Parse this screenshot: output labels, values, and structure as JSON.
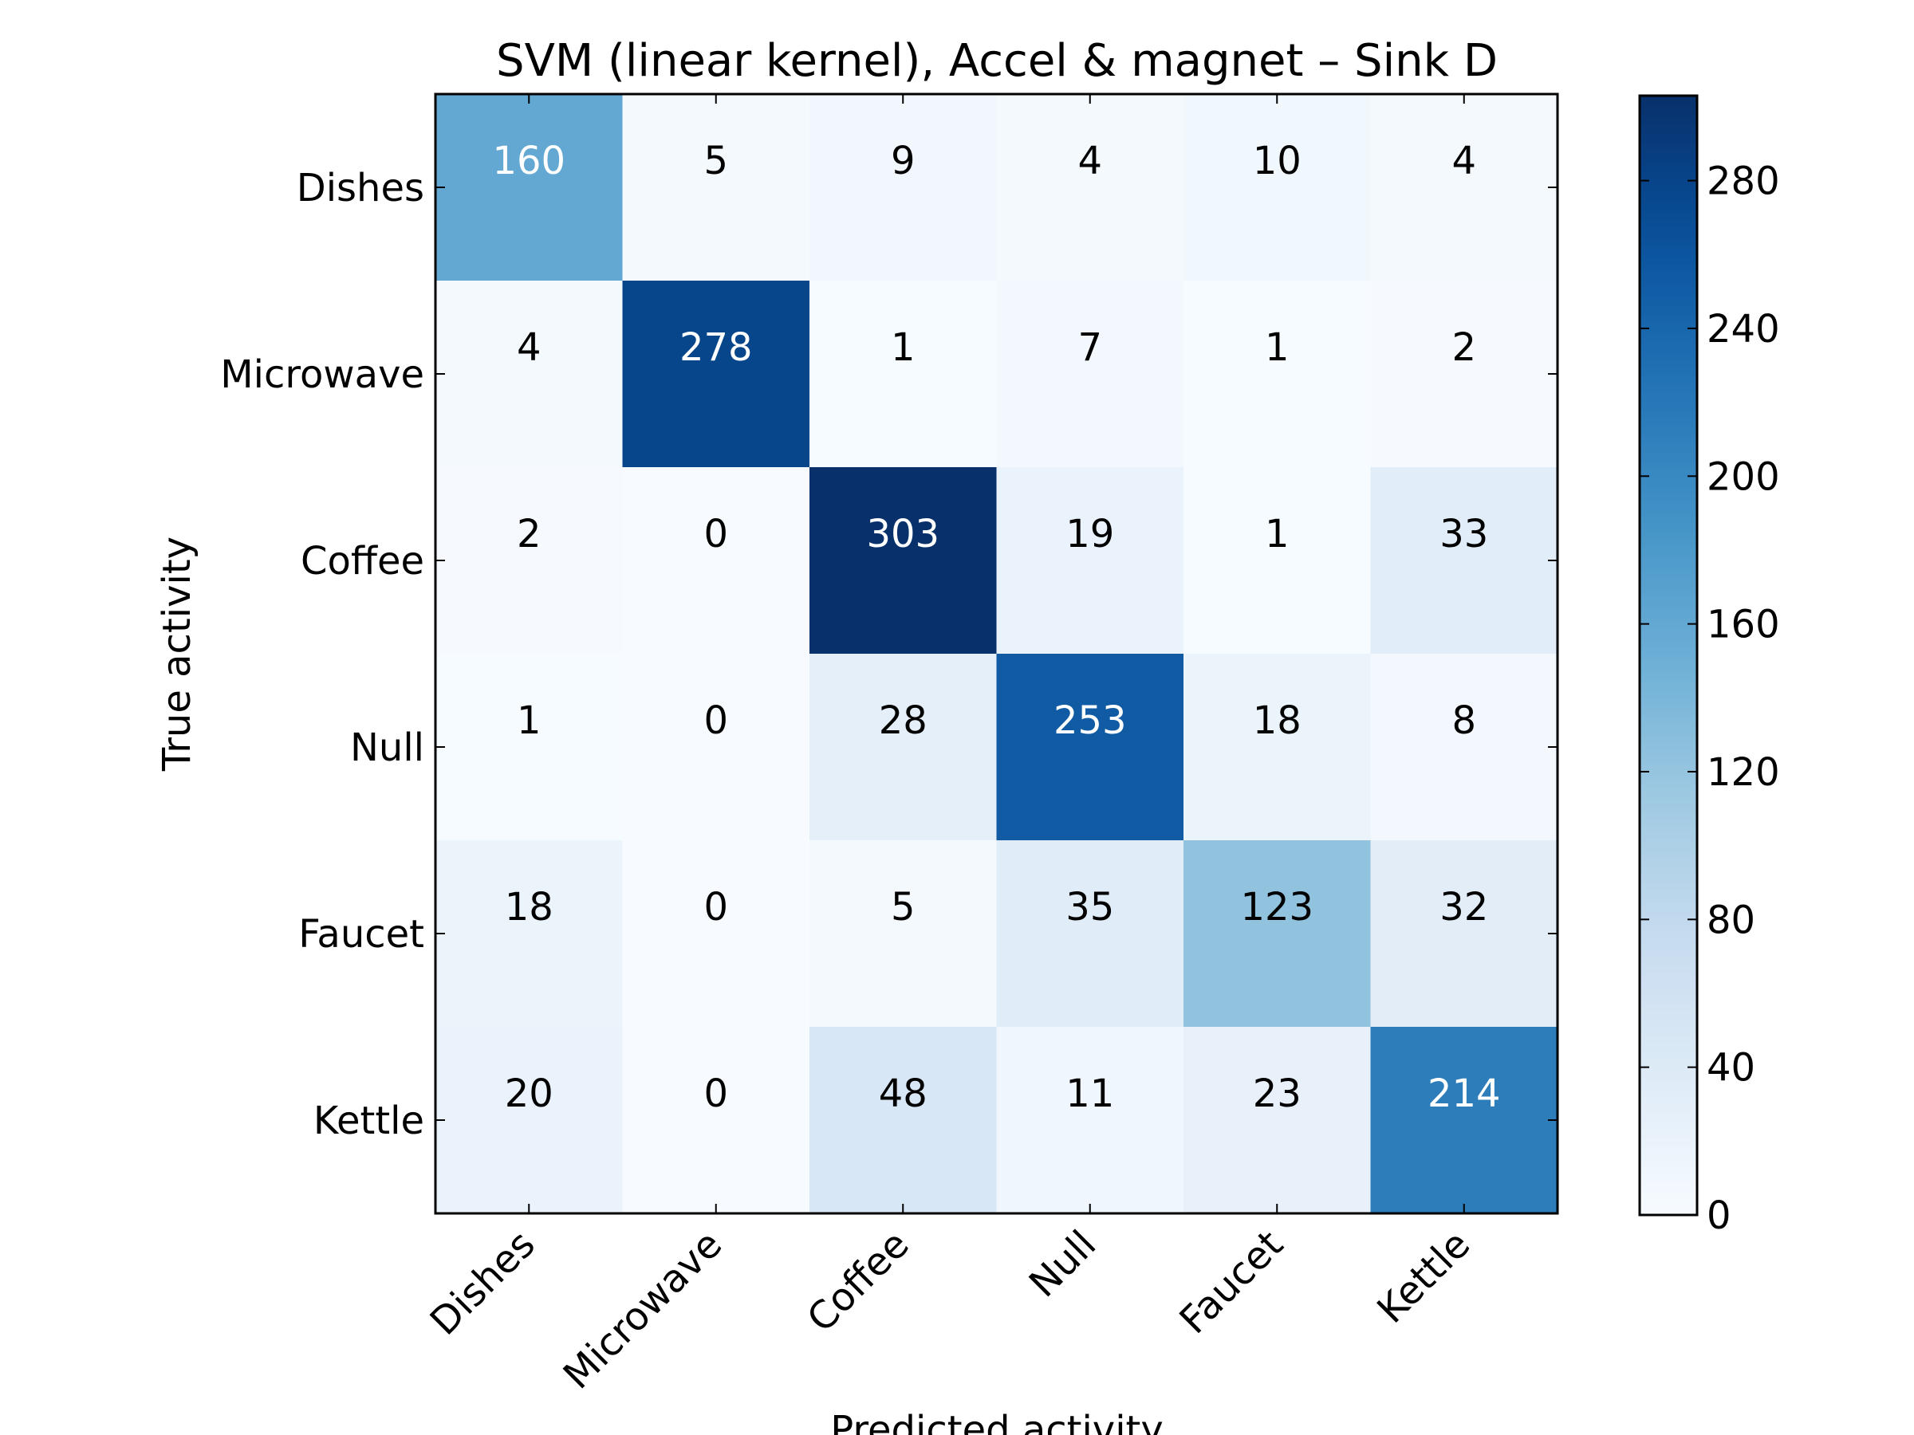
{
  "chart_data": {
    "type": "heatmap",
    "title": "SVM (linear kernel), Accel & magnet – Sink D",
    "xlabel": "Predicted activity",
    "ylabel": "True activity",
    "x_categories": [
      "Dishes",
      "Microwave",
      "Coffee",
      "Null",
      "Faucet",
      "Kettle"
    ],
    "y_categories": [
      "Dishes",
      "Microwave",
      "Coffee",
      "Null",
      "Faucet",
      "Kettle"
    ],
    "values": [
      [
        160,
        5,
        9,
        4,
        10,
        4
      ],
      [
        4,
        278,
        1,
        7,
        1,
        2
      ],
      [
        2,
        0,
        303,
        19,
        1,
        33
      ],
      [
        1,
        0,
        28,
        253,
        18,
        8
      ],
      [
        18,
        0,
        5,
        35,
        123,
        32
      ],
      [
        20,
        0,
        48,
        11,
        23,
        214
      ]
    ],
    "colormap": "Blues",
    "color_range": [
      0,
      303
    ],
    "colorbar": {
      "ticks": [
        0,
        40,
        80,
        120,
        160,
        200,
        240,
        280
      ],
      "range": [
        0,
        303
      ]
    },
    "grid": false
  }
}
